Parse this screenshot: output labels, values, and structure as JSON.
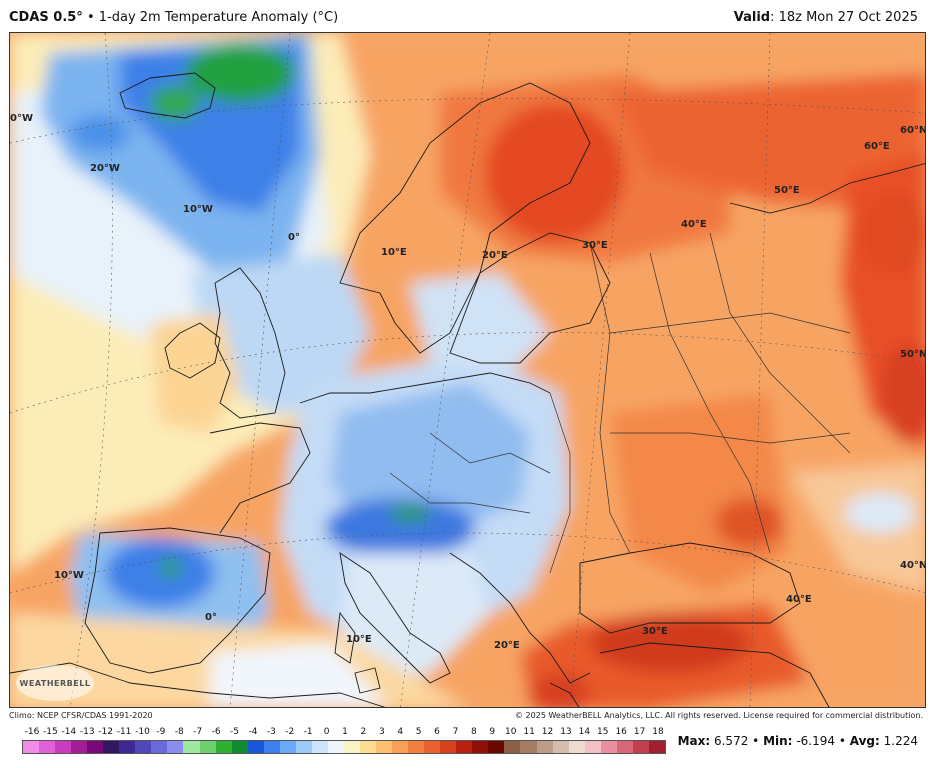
{
  "header": {
    "model": "CDAS 0.5°",
    "separator": "•",
    "product": "1-day 2m Temperature Anomaly (°C)",
    "valid_label": "Valid",
    "valid_value": ": 18z Mon 27 Oct 2025"
  },
  "map": {
    "labels": {
      "lon_0w": "0°W",
      "lon_20w": "20°W",
      "lon_10w_top": "10°W",
      "lon_0_top": "0°",
      "lon_10e_top": "10°E",
      "lon_20e_top": "20°E",
      "lon_30e_top": "30°E",
      "lon_40e_top": "40°E",
      "lon_50e": "50°E",
      "lat_60e": "60°E",
      "lat_60n": "60°N",
      "lat_50n": "50°N",
      "lat_40n": "40°N",
      "lon_10w_bottom": "10°W",
      "lon_0_bottom": "0°",
      "lon_10e_bottom": "10°E",
      "lon_20e_bottom": "20°E",
      "lon_30e_bottom": "30°E",
      "lon_40e_bottom": "40°E"
    },
    "logo_text": "WEATHERBELL"
  },
  "footer": {
    "climo": "Climo: NCEP CFSR/CDAS 1991-2020",
    "copyright": "© 2025 WeatherBELL Analytics, LLC. All rights reserved. License required for commercial distribution.",
    "stats": {
      "max_label": "Max:",
      "max_value": "6.572",
      "min_label": "Min:",
      "min_value": "-6.194",
      "avg_label": "Avg:",
      "avg_value": "1.224",
      "sep": "•"
    }
  },
  "colorbar": {
    "ticks": [
      "-16",
      "-15",
      "-14",
      "-13",
      "-12",
      "-11",
      "-10",
      "-9",
      "-8",
      "-7",
      "-6",
      "-5",
      "-4",
      "-3",
      "-2",
      "-1",
      "0",
      "1",
      "2",
      "3",
      "4",
      "5",
      "6",
      "7",
      "8",
      "9",
      "10",
      "11",
      "12",
      "13",
      "14",
      "15",
      "16",
      "17",
      "18"
    ],
    "colors": [
      "#f08ce8",
      "#e060d8",
      "#c83cc0",
      "#a01e98",
      "#780878",
      "#301860",
      "#3c2890",
      "#5048b8",
      "#6a6ad8",
      "#8c8cec",
      "#a0e8a0",
      "#70d070",
      "#30b030",
      "#108c30",
      "#1858d8",
      "#3c80f0",
      "#6aa8f8",
      "#9ccaf8",
      "#cce4fa",
      "#f0f6fc",
      "#f8f4c8",
      "#fcdc90",
      "#fcc070",
      "#f8a058",
      "#f48040",
      "#ec6030",
      "#d84020",
      "#b82010",
      "#901008",
      "#680800",
      "#8c6048",
      "#a47c64",
      "#bc9c88",
      "#d4bcac",
      "#ecdcd0",
      "#f4c0c8",
      "#e890a0",
      "#d86878",
      "#c04050",
      "#a02030"
    ]
  }
}
